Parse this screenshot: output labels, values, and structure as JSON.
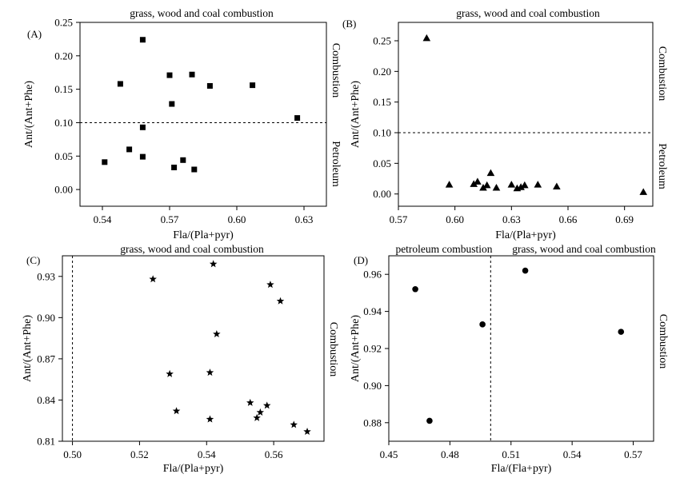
{
  "chart_data": [
    {
      "type": "scatter",
      "panel_label": "(A)",
      "title": "grass, wood and coal combustion",
      "xlabel": "Fla/(Pla+pyr)",
      "ylabel": "Ant/(Ant+Phe)",
      "xlim": [
        0.53,
        0.64
      ],
      "ylim": [
        -0.025,
        0.25
      ],
      "xticks": [
        "0.54",
        "0.57",
        "0.60",
        "0.63"
      ],
      "yticks": [
        "0.00",
        "0.05",
        "0.10",
        "0.15",
        "0.20",
        "0.25"
      ],
      "marker": "square",
      "reference_line": {
        "axis": "y",
        "value": 0.1
      },
      "region_labels": {
        "upper": "Combustion",
        "lower": "Petroleum"
      },
      "points": [
        {
          "x": 0.541,
          "y": 0.041
        },
        {
          "x": 0.548,
          "y": 0.158
        },
        {
          "x": 0.552,
          "y": 0.06
        },
        {
          "x": 0.558,
          "y": 0.224
        },
        {
          "x": 0.558,
          "y": 0.093
        },
        {
          "x": 0.558,
          "y": 0.049
        },
        {
          "x": 0.57,
          "y": 0.171
        },
        {
          "x": 0.571,
          "y": 0.128
        },
        {
          "x": 0.572,
          "y": 0.033
        },
        {
          "x": 0.576,
          "y": 0.044
        },
        {
          "x": 0.58,
          "y": 0.172
        },
        {
          "x": 0.581,
          "y": 0.03
        },
        {
          "x": 0.588,
          "y": 0.155
        },
        {
          "x": 0.607,
          "y": 0.156
        },
        {
          "x": 0.627,
          "y": 0.107
        }
      ]
    },
    {
      "type": "scatter",
      "panel_label": "(B)",
      "title": "grass, wood and coal  combustion",
      "xlabel": "Fla/(Pla+pyr)",
      "ylabel": "Ant/(Ant+Phe)",
      "xlim": [
        0.57,
        0.705
      ],
      "ylim": [
        -0.02,
        0.28
      ],
      "xticks": [
        "0.57",
        "0.60",
        "0.63",
        "0.66",
        "0.69"
      ],
      "yticks": [
        "0.00",
        "0.05",
        "0.10",
        "0.15",
        "0.20",
        "0.25"
      ],
      "marker": "triangle",
      "reference_line": {
        "axis": "y",
        "value": 0.1
      },
      "region_labels": {
        "upper": "Combustion",
        "lower": "Petroleum"
      },
      "points": [
        {
          "x": 0.585,
          "y": 0.254
        },
        {
          "x": 0.597,
          "y": 0.015
        },
        {
          "x": 0.61,
          "y": 0.016
        },
        {
          "x": 0.612,
          "y": 0.02
        },
        {
          "x": 0.615,
          "y": 0.01
        },
        {
          "x": 0.617,
          "y": 0.014
        },
        {
          "x": 0.619,
          "y": 0.034
        },
        {
          "x": 0.622,
          "y": 0.01
        },
        {
          "x": 0.63,
          "y": 0.015
        },
        {
          "x": 0.633,
          "y": 0.009
        },
        {
          "x": 0.635,
          "y": 0.011
        },
        {
          "x": 0.637,
          "y": 0.014
        },
        {
          "x": 0.644,
          "y": 0.015
        },
        {
          "x": 0.654,
          "y": 0.012
        },
        {
          "x": 0.7,
          "y": 0.003
        }
      ]
    },
    {
      "type": "scatter",
      "panel_label": "(C)",
      "title": "grass, wood and coal combustion",
      "xlabel": "Fla/(Pla+pyr)",
      "ylabel": "Ant/(Ant+Phe)",
      "xlim": [
        0.497,
        0.575
      ],
      "ylim": [
        0.81,
        0.945
      ],
      "xticks": [
        "0.50",
        "0.52",
        "0.54",
        "0.56"
      ],
      "yticks": [
        "0.81",
        "0.84",
        "0.87",
        "0.90",
        "0.93"
      ],
      "marker": "star",
      "reference_line": {
        "axis": "x",
        "value": 0.5
      },
      "region_labels": {
        "upper": "Combustion"
      },
      "points": [
        {
          "x": 0.524,
          "y": 0.928
        },
        {
          "x": 0.529,
          "y": 0.859
        },
        {
          "x": 0.531,
          "y": 0.832
        },
        {
          "x": 0.541,
          "y": 0.826
        },
        {
          "x": 0.541,
          "y": 0.86
        },
        {
          "x": 0.542,
          "y": 0.939
        },
        {
          "x": 0.543,
          "y": 0.888
        },
        {
          "x": 0.553,
          "y": 0.838
        },
        {
          "x": 0.555,
          "y": 0.827
        },
        {
          "x": 0.556,
          "y": 0.831
        },
        {
          "x": 0.558,
          "y": 0.836
        },
        {
          "x": 0.559,
          "y": 0.924
        },
        {
          "x": 0.562,
          "y": 0.912
        },
        {
          "x": 0.566,
          "y": 0.822
        },
        {
          "x": 0.57,
          "y": 0.817
        }
      ]
    },
    {
      "type": "scatter",
      "panel_label": "(D)",
      "title": "grass, wood and coal combustion",
      "title_left": "petroleum combustion",
      "xlabel": "Fla/(Fla+pyr)",
      "ylabel": "Ant/(Ant+Phe)",
      "xlim": [
        0.45,
        0.58
      ],
      "ylim": [
        0.87,
        0.97
      ],
      "xticks": [
        "0.45",
        "0.48",
        "0.51",
        "0.54",
        "0.57"
      ],
      "yticks": [
        "0.88",
        "0.90",
        "0.92",
        "0.94",
        "0.96"
      ],
      "marker": "circle",
      "reference_line": {
        "axis": "x",
        "value": 0.5
      },
      "region_labels": {
        "upper": "Combustion"
      },
      "points": [
        {
          "x": 0.463,
          "y": 0.952
        },
        {
          "x": 0.47,
          "y": 0.881
        },
        {
          "x": 0.496,
          "y": 0.933
        },
        {
          "x": 0.517,
          "y": 0.962
        },
        {
          "x": 0.564,
          "y": 0.929
        }
      ]
    }
  ]
}
